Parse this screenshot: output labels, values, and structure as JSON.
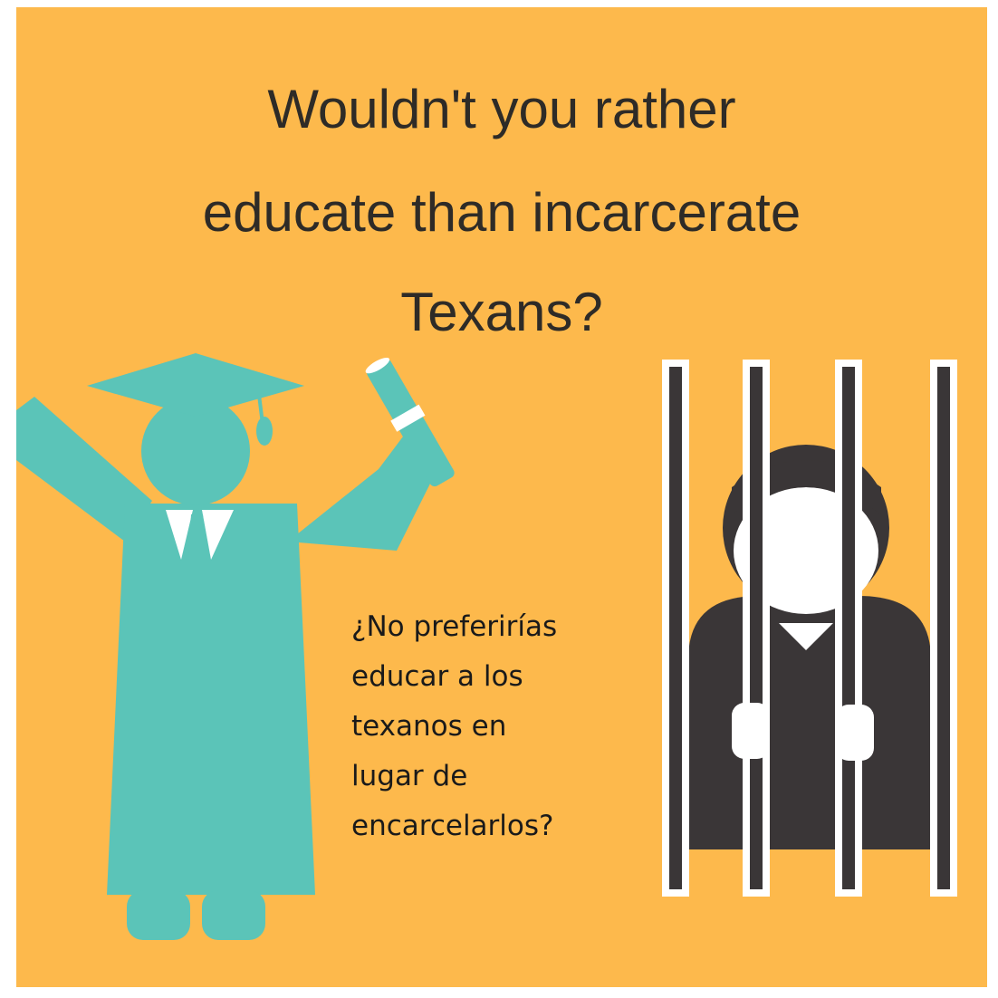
{
  "title_lines": [
    "Wouldn't you rather",
    "educate than incarcerate",
    "Texans?"
  ],
  "spanish_lines": [
    "¿No preferirías",
    "educar a los",
    "texanos en",
    "lugar de",
    "encarcelarlos?"
  ]
}
